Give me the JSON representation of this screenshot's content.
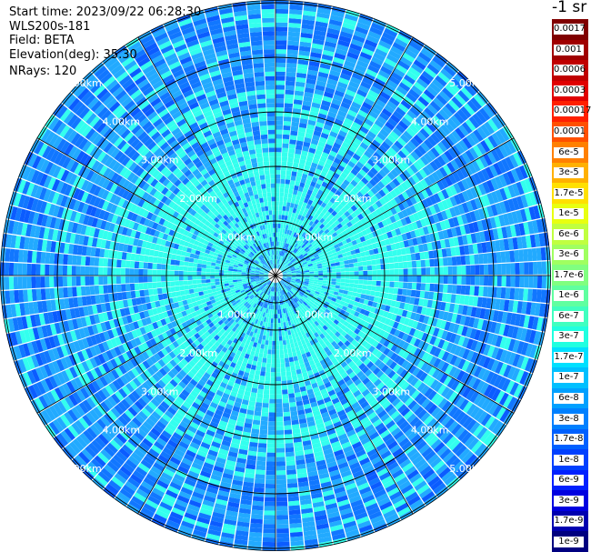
{
  "header": {
    "start_time": "Start time: 2023/09/22 06:28:30",
    "instrument": "WLS200s-181",
    "field": "Field: BETA",
    "elevation": "Elevation(deg): 35.30",
    "nrays": "NRays: 120"
  },
  "unit_label": "-1 sr",
  "colorbar": {
    "labels": [
      "0.0017",
      "0.001",
      "0.0006",
      "0.0003",
      "0.00017",
      "0.0001",
      "6e-5",
      "3e-5",
      "1.7e-5",
      "1e-5",
      "6e-6",
      "3e-6",
      "1.7e-6",
      "1e-6",
      "6e-7",
      "3e-7",
      "1.7e-7",
      "1e-7",
      "6e-8",
      "3e-8",
      "1.7e-8",
      "1e-8",
      "6e-9",
      "3e-9",
      "1.7e-9",
      "1e-9"
    ],
    "colors": [
      "#800000",
      "#a00000",
      "#c00000",
      "#e00000",
      "#ff2000",
      "#ff5000",
      "#ff8000",
      "#ffb000",
      "#ffe000",
      "#e8ff10",
      "#c0ff40",
      "#a0ff60",
      "#80ff80",
      "#60ffa0",
      "#40ffc0",
      "#20ffe0",
      "#00e0ff",
      "#00c0ff",
      "#00a0ff",
      "#0080ff",
      "#0060ff",
      "#0040ff",
      "#0020ff",
      "#0000e0",
      "#0000b0",
      "#000080"
    ]
  },
  "range_labels": [
    "1.00km",
    "2.00km",
    "3.00km",
    "4.00km",
    "5.00km"
  ],
  "colors": {
    "cyan": "#33ffee",
    "light_blue": "#22aaff",
    "blue": "#1177ff",
    "deep_blue": "#0b5cff"
  }
}
